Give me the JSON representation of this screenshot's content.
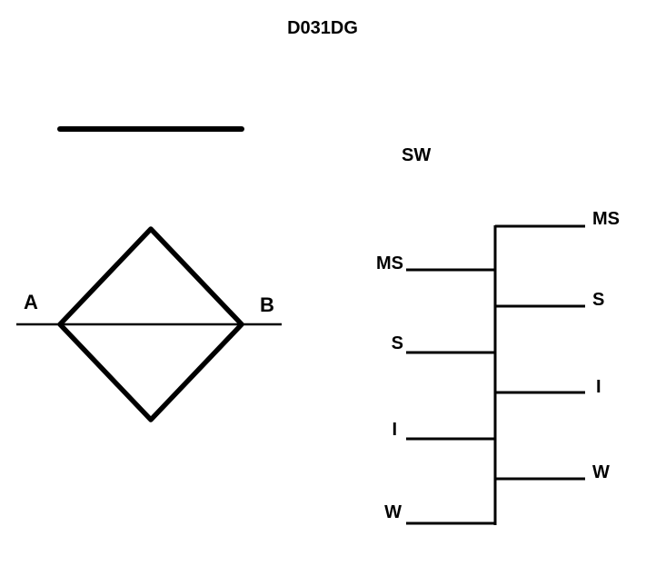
{
  "title": "D031DG",
  "symbol": {
    "port_a": "A",
    "port_b": "B"
  },
  "ladder": {
    "heading": "SW",
    "left_labels": [
      "MS",
      "S",
      "I",
      "W"
    ],
    "right_labels": [
      "MS",
      "S",
      "I",
      "W"
    ]
  },
  "colors": {
    "line": "#000000",
    "background": "#ffffff"
  }
}
